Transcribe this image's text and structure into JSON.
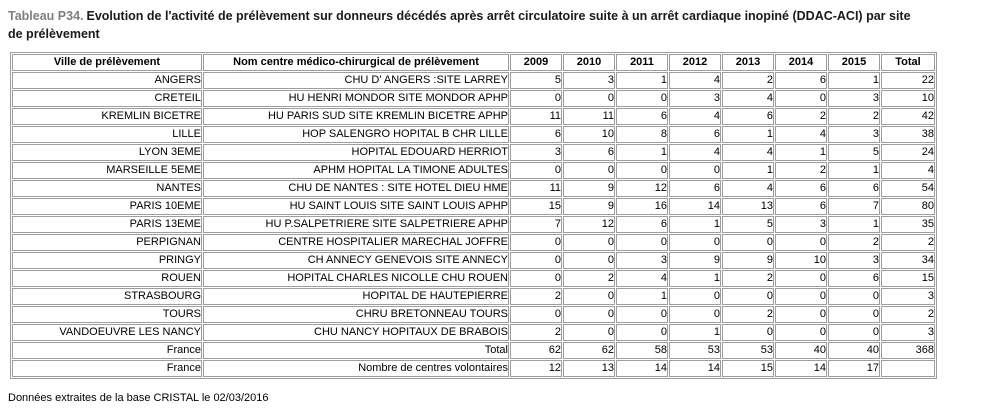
{
  "title": {
    "prefix": "Tableau P34.",
    "text": "Evolution de l'activité de prélèvement sur donneurs décédés après arrêt circulatoire suite à un arrêt cardiaque inopiné (DDAC-ACI) par site de prélèvement"
  },
  "colors": {
    "title_prefix": "#7f7f7f",
    "table_border": "#9e9e9e",
    "text": "#000000",
    "background": "#ffffff"
  },
  "table": {
    "columns": [
      "Ville de prélèvement",
      "Nom centre médico-chirurgical de prélèvement",
      "2009",
      "2010",
      "2011",
      "2012",
      "2013",
      "2014",
      "2015",
      "Total"
    ],
    "rows": [
      {
        "city": "ANGERS",
        "center": "CHU D' ANGERS :SITE LARREY",
        "values": [
          "5",
          "3",
          "1",
          "4",
          "2",
          "6",
          "1"
        ],
        "total": "22"
      },
      {
        "city": "CRETEIL",
        "center": "HU HENRI MONDOR SITE MONDOR APHP",
        "values": [
          "0",
          "0",
          "0",
          "3",
          "4",
          "0",
          "3"
        ],
        "total": "10"
      },
      {
        "city": "KREMLIN BICETRE",
        "center": "HU PARIS SUD SITE KREMLIN BICETRE APHP",
        "values": [
          "11",
          "11",
          "6",
          "4",
          "6",
          "2",
          "2"
        ],
        "total": "42"
      },
      {
        "city": "LILLE",
        "center": "HOP SALENGRO HOPITAL B CHR LILLE",
        "values": [
          "6",
          "10",
          "8",
          "6",
          "1",
          "4",
          "3"
        ],
        "total": "38"
      },
      {
        "city": "LYON 3EME",
        "center": "HOPITAL EDOUARD HERRIOT",
        "values": [
          "3",
          "6",
          "1",
          "4",
          "4",
          "1",
          "5"
        ],
        "total": "24"
      },
      {
        "city": "MARSEILLE 5EME",
        "center": "APHM HOPITAL LA TIMONE ADULTES",
        "values": [
          "0",
          "0",
          "0",
          "0",
          "1",
          "2",
          "1"
        ],
        "total": "4"
      },
      {
        "city": "NANTES",
        "center": "CHU DE NANTES : SITE HOTEL DIEU HME",
        "values": [
          "11",
          "9",
          "12",
          "6",
          "4",
          "6",
          "6"
        ],
        "total": "54"
      },
      {
        "city": "PARIS 10EME",
        "center": "HU SAINT LOUIS SITE SAINT LOUIS APHP",
        "values": [
          "15",
          "9",
          "16",
          "14",
          "13",
          "6",
          "7"
        ],
        "total": "80"
      },
      {
        "city": "PARIS 13EME",
        "center": "HU P.SALPETRIERE SITE SALPETRIERE APHP",
        "values": [
          "7",
          "12",
          "6",
          "1",
          "5",
          "3",
          "1"
        ],
        "total": "35"
      },
      {
        "city": "PERPIGNAN",
        "center": "CENTRE HOSPITALIER MARECHAL JOFFRE",
        "values": [
          "0",
          "0",
          "0",
          "0",
          "0",
          "0",
          "2"
        ],
        "total": "2"
      },
      {
        "city": "PRINGY",
        "center": "CH ANNECY GENEVOIS SITE ANNECY",
        "values": [
          "0",
          "0",
          "3",
          "9",
          "9",
          "10",
          "3"
        ],
        "total": "34"
      },
      {
        "city": "ROUEN",
        "center": "HOPITAL CHARLES NICOLLE CHU ROUEN",
        "values": [
          "0",
          "2",
          "4",
          "1",
          "2",
          "0",
          "6"
        ],
        "total": "15"
      },
      {
        "city": "STRASBOURG",
        "center": "HOPITAL DE HAUTEPIERRE",
        "values": [
          "2",
          "0",
          "1",
          "0",
          "0",
          "0",
          "0"
        ],
        "total": "3"
      },
      {
        "city": "TOURS",
        "center": "CHRU BRETONNEAU TOURS",
        "values": [
          "0",
          "0",
          "0",
          "0",
          "2",
          "0",
          "0"
        ],
        "total": "2"
      },
      {
        "city": "VANDOEUVRE LES NANCY",
        "center": "CHU NANCY HOPITAUX DE BRABOIS",
        "values": [
          "2",
          "0",
          "0",
          "1",
          "0",
          "0",
          "0"
        ],
        "total": "3"
      },
      {
        "city": "France",
        "center": "Total",
        "values": [
          "62",
          "62",
          "58",
          "53",
          "53",
          "40",
          "40"
        ],
        "total": "368"
      },
      {
        "city": "France",
        "center": "Nombre de centres volontaires",
        "values": [
          "12",
          "13",
          "14",
          "14",
          "15",
          "14",
          "17"
        ],
        "total": ""
      }
    ]
  },
  "footer": "Données extraites de la base CRISTAL le 02/03/2016"
}
